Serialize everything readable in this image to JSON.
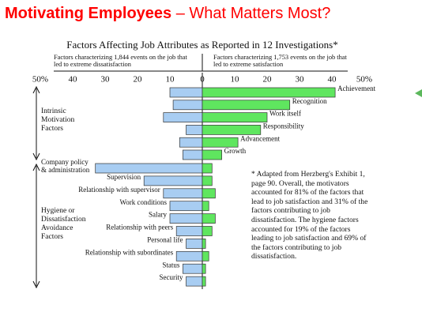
{
  "title_main": "Motivating Employees",
  "title_rest": "– What Matters Most?",
  "chart_data": {
    "type": "bar",
    "orientation": "horizontal",
    "title": "Factors Affecting Job Attributes as Reported in 12 Investigations*",
    "left_subtitle": "Factors characterizing 1,844 events on the job that led to extreme dissatisfaction",
    "right_subtitle": "Factors characterizing 1,753 events on the job that led to extreme satisfaction",
    "groups": [
      "Intrinsic Motivation Factors",
      "Hygiene or Dissatisfaction Avoidance Factors"
    ],
    "categories": [
      "Achievement",
      "Recognition",
      "Work itself",
      "Responsibility",
      "Advancement",
      "Growth",
      "Company policy & administration",
      "Supervision",
      "Relationship with supervisor",
      "Work conditions",
      "Salary",
      "Relationship with peers",
      "Personal life",
      "Relationship with subordinates",
      "Status",
      "Security"
    ],
    "series": [
      {
        "name": "dissatisfaction",
        "color": "#a8cdf2",
        "values": [
          10,
          9,
          12,
          5,
          7,
          6,
          33,
          18,
          12,
          10,
          10,
          8,
          5,
          8,
          6,
          5
        ]
      },
      {
        "name": "satisfaction",
        "color": "#5fe65f",
        "values": [
          41,
          27,
          20,
          18,
          11,
          6,
          3,
          3,
          4,
          2,
          4,
          3,
          1,
          2,
          1,
          1
        ]
      }
    ],
    "xlim": [
      0,
      50
    ],
    "left_xticks": [
      {
        "value": 50,
        "label": "50%"
      },
      40,
      30,
      20,
      10
    ],
    "xticks": [
      0,
      10,
      20,
      30,
      40,
      {
        "value": 50,
        "label": "50%"
      }
    ],
    "note": "* Adapted from Herzberg's Exhibit 1, page 90. Overall, the motivators accounted for 81% of the factors that lead to job satisfaction and 31% of the factors contributing to job dissatisfaction. The hygiene factors accounted for 19% of the factors leading to job satisfaction and 69% of the factors contributing to job dissatisfaction."
  }
}
